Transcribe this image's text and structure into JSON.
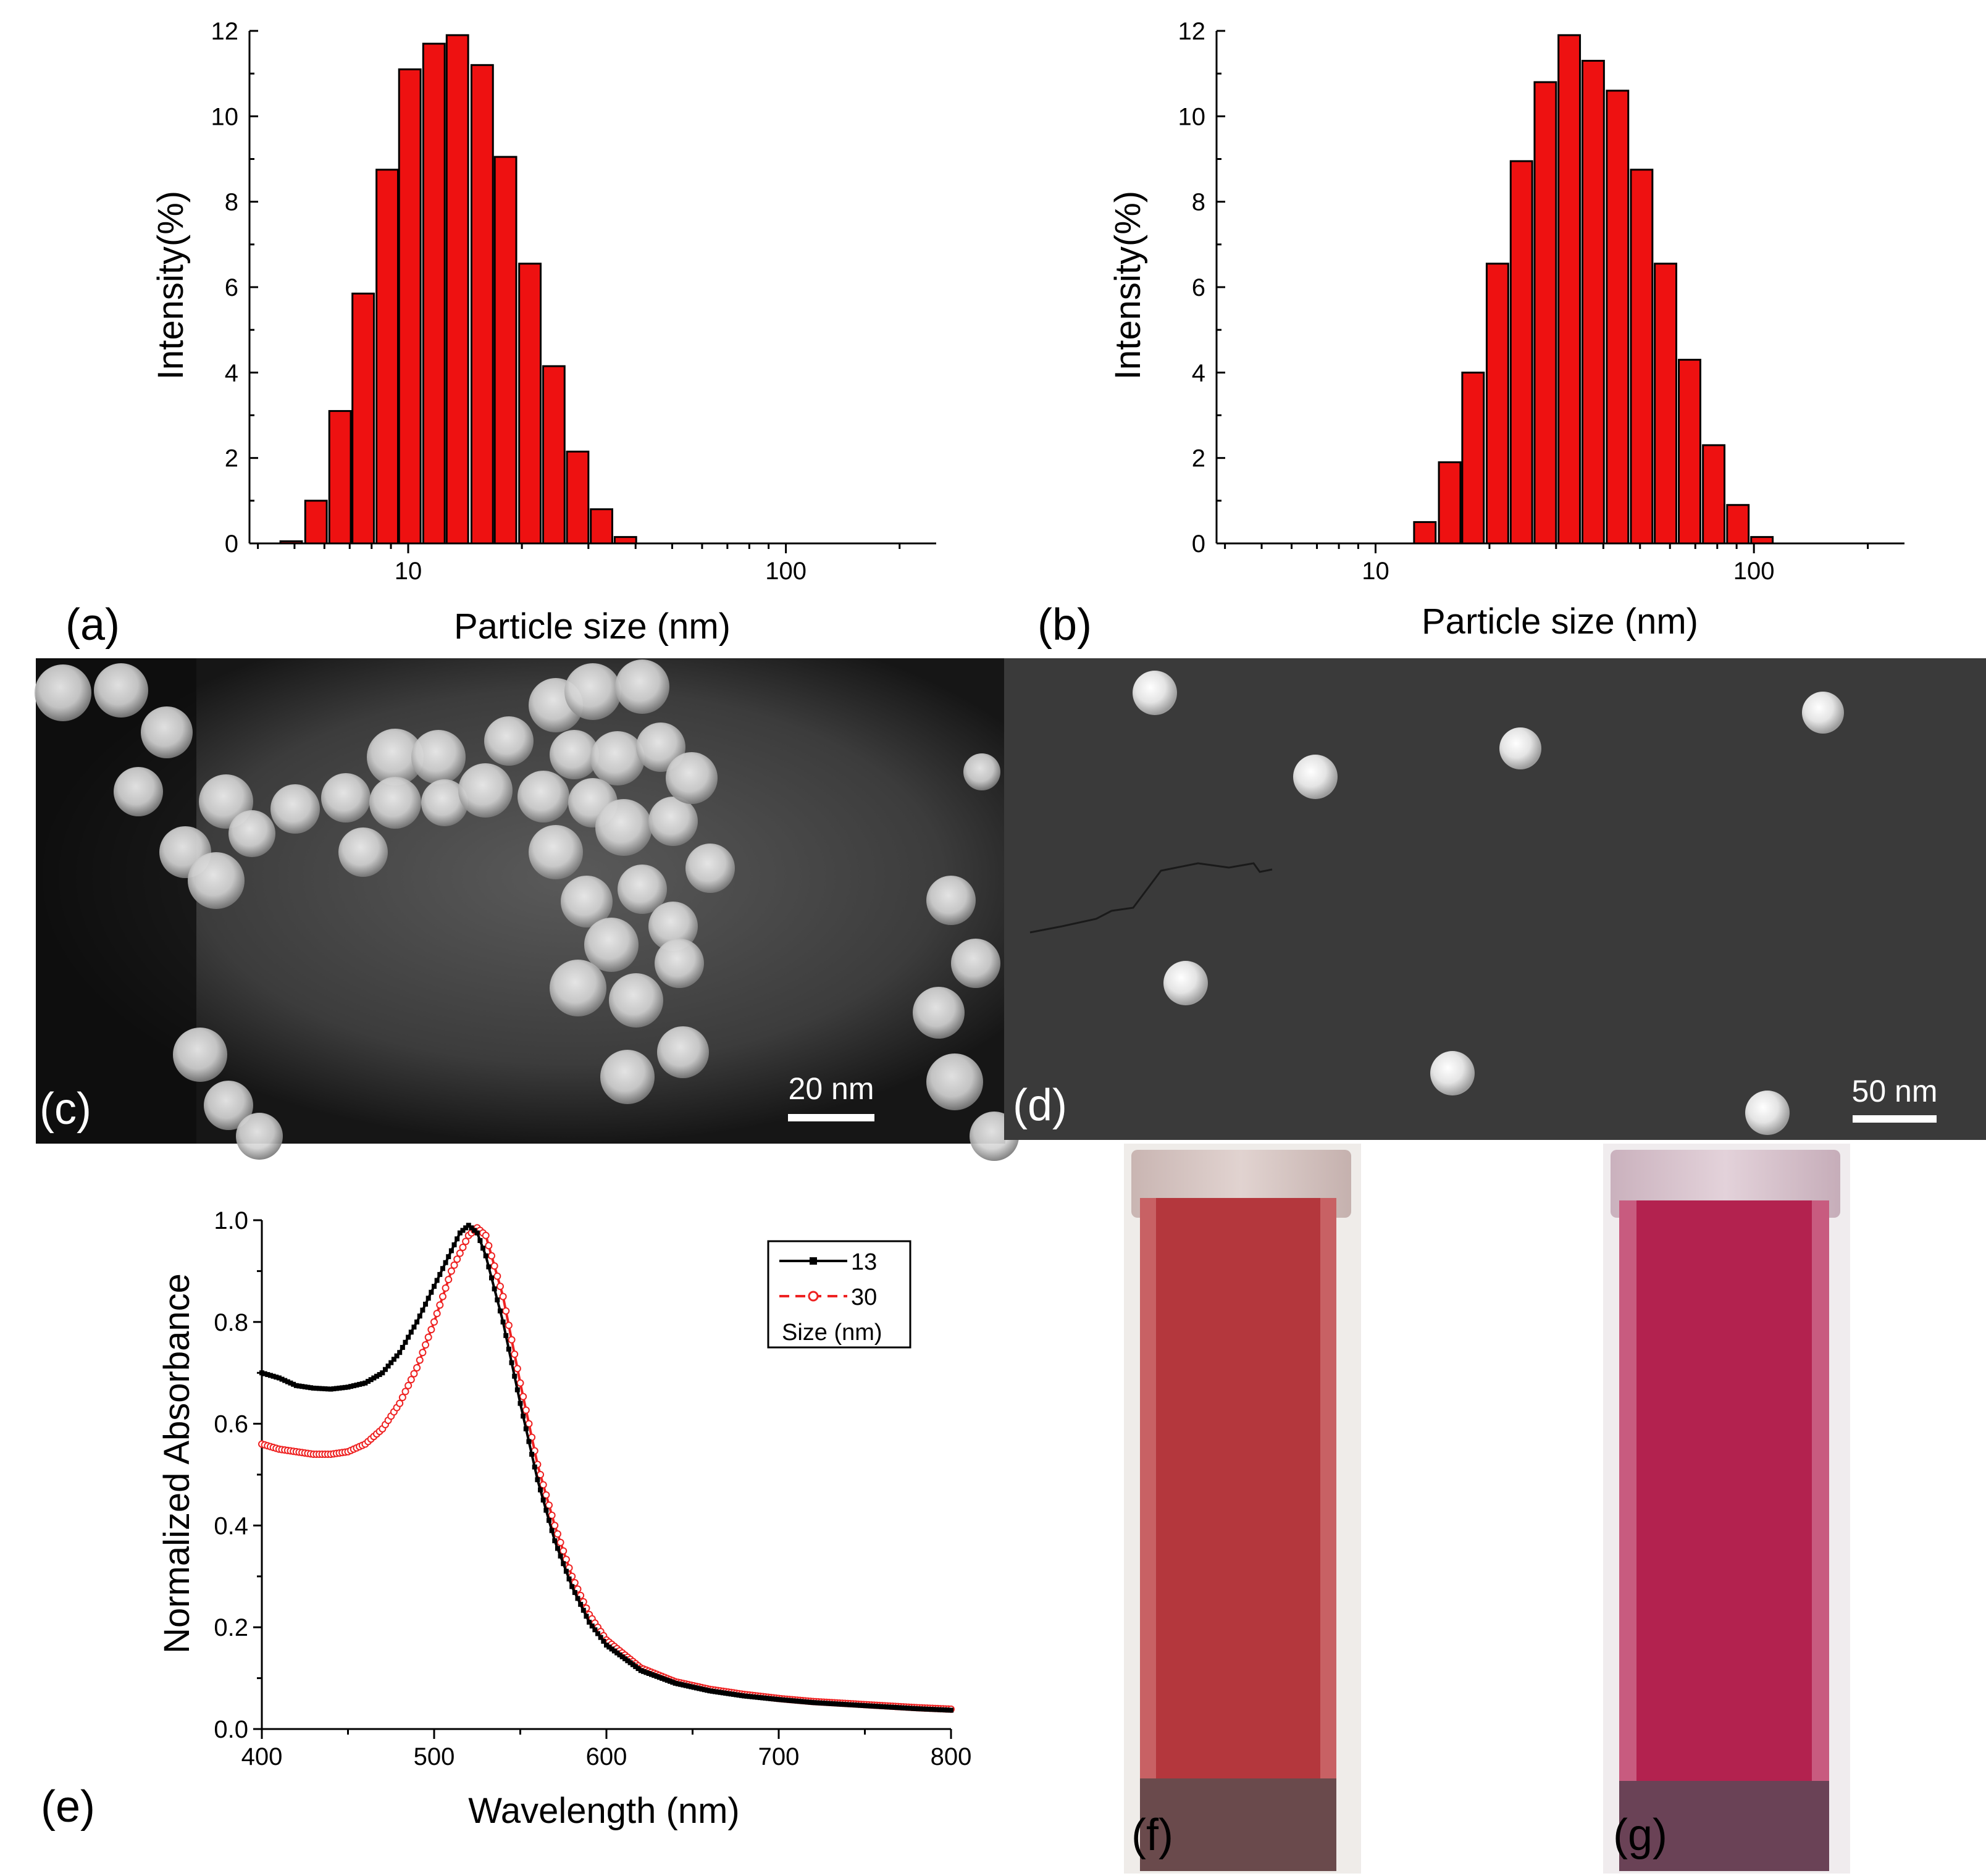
{
  "chart_data": [
    {
      "panel": "(a)",
      "type": "bar",
      "xscale": "log",
      "xlabel": "Particle size (nm)",
      "ylabel": "Intensity(%)",
      "xlim": [
        3.8,
        250
      ],
      "ylim": [
        0,
        12
      ],
      "yticks": [
        "0",
        "2",
        "4",
        "6",
        "8",
        "10",
        "12"
      ],
      "xticks": [
        "10",
        "100"
      ],
      "bars": [
        {
          "x": 4.9,
          "y": 0.05
        },
        {
          "x": 5.7,
          "y": 1.0
        },
        {
          "x": 6.6,
          "y": 3.1
        },
        {
          "x": 7.6,
          "y": 5.85
        },
        {
          "x": 8.8,
          "y": 8.75
        },
        {
          "x": 10.1,
          "y": 11.1
        },
        {
          "x": 11.7,
          "y": 11.7
        },
        {
          "x": 13.5,
          "y": 11.9
        },
        {
          "x": 15.7,
          "y": 11.2
        },
        {
          "x": 18.1,
          "y": 9.05
        },
        {
          "x": 21.0,
          "y": 6.55
        },
        {
          "x": 24.3,
          "y": 4.15
        },
        {
          "x": 28.1,
          "y": 2.15
        },
        {
          "x": 32.5,
          "y": 0.8
        },
        {
          "x": 37.6,
          "y": 0.15
        }
      ]
    },
    {
      "panel": "(b)",
      "type": "bar",
      "xscale": "log",
      "xlabel": "Particle size (nm)",
      "ylabel": "Intensity(%)",
      "xlim": [
        3.8,
        250
      ],
      "ylim": [
        0,
        12
      ],
      "yticks": [
        "0",
        "2",
        "4",
        "6",
        "8",
        "10",
        "12"
      ],
      "xticks": [
        "10",
        "100"
      ],
      "bars": [
        {
          "x": 13.5,
          "y": 0.5
        },
        {
          "x": 15.7,
          "y": 1.9
        },
        {
          "x": 18.1,
          "y": 4.0
        },
        {
          "x": 21.0,
          "y": 6.55
        },
        {
          "x": 24.3,
          "y": 8.95
        },
        {
          "x": 28.1,
          "y": 10.8
        },
        {
          "x": 32.5,
          "y": 11.9
        },
        {
          "x": 37.6,
          "y": 11.3
        },
        {
          "x": 43.6,
          "y": 10.6
        },
        {
          "x": 50.5,
          "y": 8.75
        },
        {
          "x": 58.4,
          "y": 6.55
        },
        {
          "x": 67.6,
          "y": 4.3
        },
        {
          "x": 78.3,
          "y": 2.3
        },
        {
          "x": 90.7,
          "y": 0.9
        },
        {
          "x": 105,
          "y": 0.15
        }
      ]
    },
    {
      "panel": "(e)",
      "type": "line",
      "xlabel": "Wavelength (nm)",
      "ylabel": "Normalized Absorbance",
      "xlim": [
        400,
        800
      ],
      "ylim": [
        0,
        1.0
      ],
      "xticks": [
        "400",
        "500",
        "600",
        "700",
        "800"
      ],
      "yticks": [
        "0.0",
        "0.2",
        "0.4",
        "0.6",
        "0.8",
        "1.0"
      ],
      "legend_title": "Size (nm)",
      "legend_position": "top-right",
      "series": [
        {
          "name": "13",
          "color": "#000000",
          "marker": "filled-square",
          "x": [
            400,
            410,
            420,
            430,
            440,
            450,
            460,
            470,
            480,
            490,
            500,
            510,
            515,
            520,
            525,
            530,
            540,
            550,
            560,
            570,
            580,
            590,
            600,
            620,
            640,
            660,
            680,
            700,
            720,
            740,
            760,
            780,
            800
          ],
          "y": [
            0.7,
            0.69,
            0.675,
            0.67,
            0.668,
            0.672,
            0.68,
            0.7,
            0.74,
            0.8,
            0.87,
            0.94,
            0.975,
            0.99,
            0.975,
            0.93,
            0.8,
            0.64,
            0.49,
            0.37,
            0.28,
            0.21,
            0.165,
            0.115,
            0.09,
            0.075,
            0.065,
            0.058,
            0.052,
            0.048,
            0.044,
            0.04,
            0.037
          ]
        },
        {
          "name": "30",
          "color": "#ee2222",
          "marker": "open-circle",
          "x": [
            400,
            410,
            420,
            430,
            440,
            450,
            460,
            470,
            480,
            490,
            500,
            510,
            520,
            525,
            530,
            540,
            550,
            560,
            570,
            580,
            590,
            600,
            620,
            640,
            660,
            680,
            700,
            720,
            740,
            760,
            780,
            800
          ],
          "y": [
            0.56,
            0.55,
            0.545,
            0.54,
            0.54,
            0.545,
            0.56,
            0.59,
            0.64,
            0.71,
            0.8,
            0.9,
            0.97,
            0.985,
            0.97,
            0.85,
            0.68,
            0.52,
            0.4,
            0.3,
            0.225,
            0.175,
            0.12,
            0.093,
            0.078,
            0.068,
            0.06,
            0.054,
            0.05,
            0.046,
            0.042,
            0.039
          ]
        }
      ]
    }
  ],
  "panels": {
    "a": {
      "label": "(a)"
    },
    "b": {
      "label": "(b)"
    },
    "c": {
      "label": "(c)",
      "scale_bar": "20 nm"
    },
    "d": {
      "label": "(d)",
      "scale_bar": "50 nm"
    },
    "e": {
      "label": "(e)"
    },
    "f": {
      "label": "(f)",
      "liquid_color": "#b4373d"
    },
    "g": {
      "label": "(g)",
      "liquid_color": "#b3224f"
    }
  },
  "colors": {
    "bar_fill": "#ee1111",
    "series_13": "#000000",
    "series_30": "#ee2222"
  }
}
